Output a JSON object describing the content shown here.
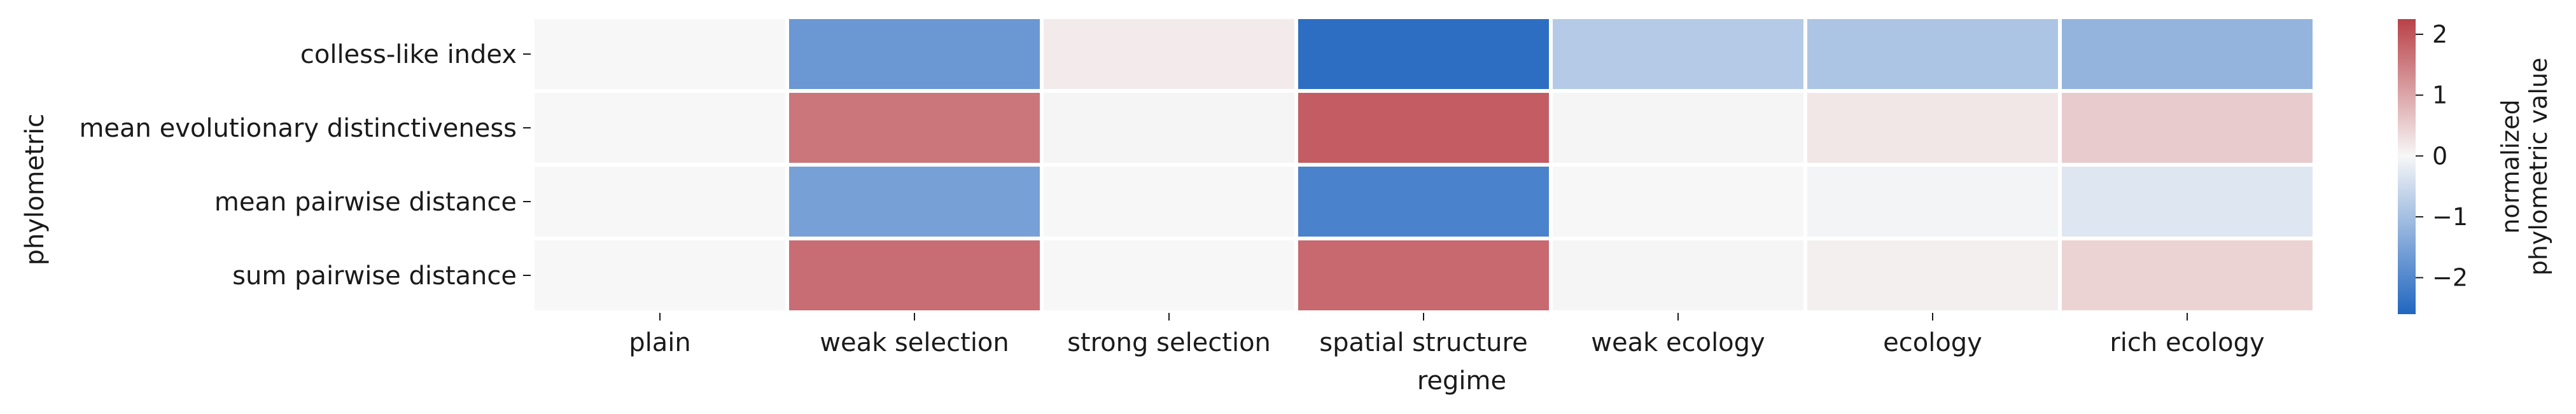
{
  "chart_data": {
    "type": "heatmap",
    "xlabel": "regime",
    "ylabel": "phylometric",
    "x_categories": [
      "plain",
      "weak selection",
      "strong selection",
      "spatial structure",
      "weak ecology",
      "ecology",
      "rich ecology"
    ],
    "y_categories": [
      "colless-like index",
      "mean evolutionary distinctiveness",
      "mean pairwise distance",
      "sum pairwise distance"
    ],
    "values": [
      [
        0.0,
        -1.7,
        0.15,
        -2.45,
        -0.8,
        -0.9,
        -1.2
      ],
      [
        0.0,
        1.6,
        0.02,
        1.9,
        0.03,
        0.2,
        0.55
      ],
      [
        0.0,
        -1.55,
        0.0,
        -2.1,
        0.0,
        -0.05,
        -0.3
      ],
      [
        0.0,
        1.7,
        0.0,
        1.75,
        0.02,
        0.1,
        0.45
      ]
    ],
    "colorbar": {
      "label_lines": [
        "normalized",
        "phylometric value"
      ],
      "vmin": -2.6,
      "vmax": 2.25,
      "ticks": [
        2,
        1,
        0,
        -1,
        -2
      ],
      "tick_labels": [
        "2",
        "1",
        "0",
        "−1",
        "−2"
      ],
      "colormap": [
        "#2166c0",
        "#f7f7f7",
        "#b94148"
      ]
    },
    "legend": "colorbar-right",
    "grid": false
  }
}
